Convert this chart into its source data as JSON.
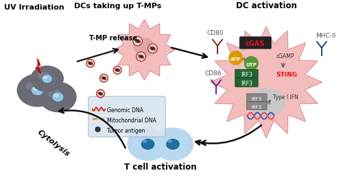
{
  "title_uv": "UV Irradiation",
  "title_dc_uptake": "DCs taking up T-MPs",
  "title_dc_activation": "DC activation",
  "title_tmp_release": "T-MP release",
  "title_cytolysis": "Cytolysis",
  "title_t_cell": "T cell activation",
  "legend_genomic": "Genomic DNA",
  "legend_mito": "Mitochondrial DNA",
  "legend_antigen": "Tumor antigen",
  "label_cd80": "CD80",
  "label_cd86": "CD86",
  "label_cgas": "cGAS",
  "label_sting": "STING",
  "label_cgamp": "cGAMP",
  "label_atp": "ATP",
  "label_gtp": "GTP",
  "label_mhcii": "MHC-II",
  "label_type_ifn": "Type I IFN",
  "label_irf3": "IRF3",
  "bg_color": "#ffffff",
  "tumor_cell_body": "#6b6b75",
  "tumor_cell_nucleus": "#8ec8e8",
  "dc_pink": "#f2b8b8",
  "t_cell_outer": "#b8d8f0",
  "t_cell_nucleus": "#1e6fa0",
  "arrow_color": "#111111",
  "mp_ring": "#6699cc",
  "mp_red": "#cc2200",
  "mp_dot": "#222222",
  "lightning_color": "#cc0000",
  "cd80_color": "#882222",
  "cd86_color": "#662288",
  "mhcii_color": "#224488",
  "cgas_bg": "#333333",
  "cgas_fg": "#ee1111",
  "sting_fg": "#ee1111",
  "atp_bg": "#dd9900",
  "gtp_bg": "#559933",
  "irf_green": "#226633",
  "irf_gray": "#888888",
  "nucleus_gray": "#c8c8c8",
  "dna_blue": "#2244bb",
  "dna_red": "#ee3322",
  "legend_bg": "#d8e4ee"
}
